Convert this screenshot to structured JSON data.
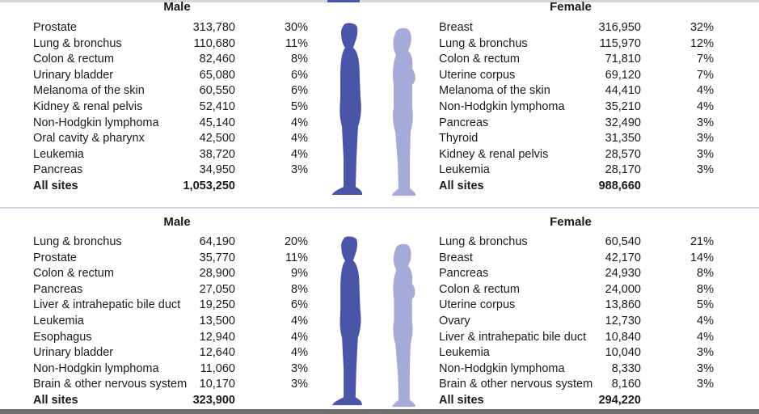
{
  "colors": {
    "male_figure": "#4a55a8",
    "female_figure": "#a6aad9",
    "divider": "#d3d3e6"
  },
  "chart_data": [
    {
      "type": "table",
      "title": "Male",
      "columns": [
        "site",
        "count",
        "percent"
      ],
      "rows": [
        {
          "site": "Prostate",
          "count": "313,780",
          "pct": "30%"
        },
        {
          "site": "Lung & bronchus",
          "count": "110,680",
          "pct": "11%"
        },
        {
          "site": "Colon & rectum",
          "count": "82,460",
          "pct": "8%"
        },
        {
          "site": "Urinary bladder",
          "count": "65,080",
          "pct": "6%"
        },
        {
          "site": "Melanoma of the skin",
          "count": "60,550",
          "pct": "6%"
        },
        {
          "site": "Kidney & renal pelvis",
          "count": "52,410",
          "pct": "5%"
        },
        {
          "site": "Non-Hodgkin lymphoma",
          "count": "45,140",
          "pct": "4%"
        },
        {
          "site": "Oral cavity & pharynx",
          "count": "42,500",
          "pct": "4%"
        },
        {
          "site": "Leukemia",
          "count": "38,720",
          "pct": "4%"
        },
        {
          "site": "Pancreas",
          "count": "34,950",
          "pct": "3%"
        }
      ],
      "total": {
        "site": "All sites",
        "count": "1,053,250"
      }
    },
    {
      "type": "table",
      "title": "Female",
      "columns": [
        "site",
        "count",
        "percent"
      ],
      "rows": [
        {
          "site": "Breast",
          "count": "316,950",
          "pct": "32%"
        },
        {
          "site": "Lung & bronchus",
          "count": "115,970",
          "pct": "12%"
        },
        {
          "site": "Colon & rectum",
          "count": "71,810",
          "pct": "7%"
        },
        {
          "site": "Uterine corpus",
          "count": "69,120",
          "pct": "7%"
        },
        {
          "site": "Melanoma of the skin",
          "count": "44,410",
          "pct": "4%"
        },
        {
          "site": "Non-Hodgkin lymphoma",
          "count": "35,210",
          "pct": "4%"
        },
        {
          "site": "Pancreas",
          "count": "32,490",
          "pct": "3%"
        },
        {
          "site": "Thyroid",
          "count": "31,350",
          "pct": "3%"
        },
        {
          "site": "Kidney & renal pelvis",
          "count": "28,570",
          "pct": "3%"
        },
        {
          "site": "Leukemia",
          "count": "28,170",
          "pct": "3%"
        }
      ],
      "total": {
        "site": "All sites",
        "count": "988,660"
      }
    },
    {
      "type": "table",
      "title": "Male",
      "columns": [
        "site",
        "count",
        "percent"
      ],
      "rows": [
        {
          "site": "Lung & bronchus",
          "count": "64,190",
          "pct": "20%"
        },
        {
          "site": "Prostate",
          "count": "35,770",
          "pct": "11%"
        },
        {
          "site": "Colon & rectum",
          "count": "28,900",
          "pct": "9%"
        },
        {
          "site": "Pancreas",
          "count": "27,050",
          "pct": "8%"
        },
        {
          "site": "Liver & intrahepatic bile duct",
          "count": "19,250",
          "pct": "6%"
        },
        {
          "site": "Leukemia",
          "count": "13,500",
          "pct": "4%"
        },
        {
          "site": "Esophagus",
          "count": "12,940",
          "pct": "4%"
        },
        {
          "site": "Urinary bladder",
          "count": "12,640",
          "pct": "4%"
        },
        {
          "site": "Non-Hodgkin lymphoma",
          "count": "11,060",
          "pct": "3%"
        },
        {
          "site": "Brain & other nervous system",
          "count": "10,170",
          "pct": "3%"
        }
      ],
      "total": {
        "site": "All sites",
        "count": "323,900"
      }
    },
    {
      "type": "table",
      "title": "Female",
      "columns": [
        "site",
        "count",
        "percent"
      ],
      "rows": [
        {
          "site": "Lung & bronchus",
          "count": "60,540",
          "pct": "21%"
        },
        {
          "site": "Breast",
          "count": "42,170",
          "pct": "14%"
        },
        {
          "site": "Pancreas",
          "count": "24,930",
          "pct": "8%"
        },
        {
          "site": "Colon & rectum",
          "count": "24,000",
          "pct": "8%"
        },
        {
          "site": "Uterine corpus",
          "count": "13,860",
          "pct": "5%"
        },
        {
          "site": "Ovary",
          "count": "12,730",
          "pct": "4%"
        },
        {
          "site": "Liver & intrahepatic bile duct",
          "count": "10,840",
          "pct": "4%"
        },
        {
          "site": "Leukemia",
          "count": "10,040",
          "pct": "3%"
        },
        {
          "site": "Non-Hodgkin lymphoma",
          "count": "8,330",
          "pct": "3%"
        },
        {
          "site": "Brain & other nervous system",
          "count": "8,160",
          "pct": "3%"
        }
      ],
      "total": {
        "site": "All sites",
        "count": "294,220"
      }
    }
  ]
}
